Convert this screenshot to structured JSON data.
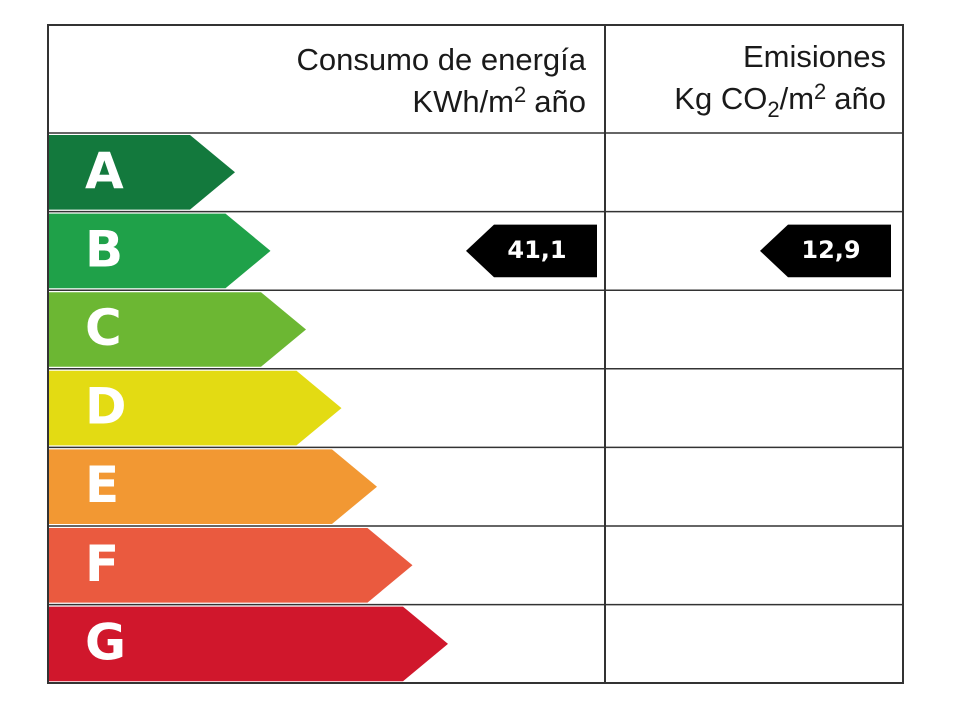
{
  "header": {
    "energy": {
      "title": "Consumo de energía",
      "unit": [
        "KWh/m",
        "2",
        "año"
      ]
    },
    "emissions": {
      "title": "Emisiones",
      "unit": [
        "Kg CO",
        "2",
        "/m",
        "2",
        "año"
      ]
    }
  },
  "ratings": [
    {
      "letter": "A",
      "color": "#13793d"
    },
    {
      "letter": "B",
      "color": "#1fa149",
      "energy": "41,1",
      "emissions": "12,9"
    },
    {
      "letter": "C",
      "color": "#6cb733"
    },
    {
      "letter": "D",
      "color": "#e3db13"
    },
    {
      "letter": "E",
      "color": "#f29833"
    },
    {
      "letter": "F",
      "color": "#ea5a3f"
    },
    {
      "letter": "G",
      "color": "#d0172c"
    }
  ]
}
